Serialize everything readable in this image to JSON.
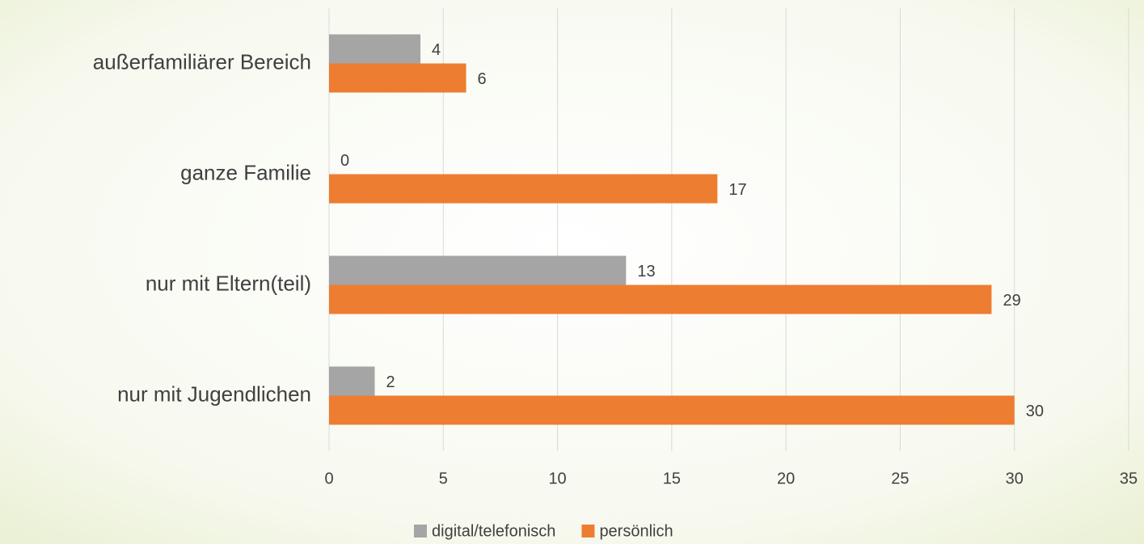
{
  "chart_data": {
    "type": "hbar",
    "categories": [
      "außerfamiliärer Bereich",
      "ganze Familie",
      "nur mit Eltern(teil)",
      "nur mit Jugendlichen"
    ],
    "series": [
      {
        "name": "digital/telefonisch",
        "color": "#a5a5a5",
        "values": [
          4,
          0,
          13,
          2
        ]
      },
      {
        "name": "persönlich",
        "color": "#ed7d31",
        "values": [
          6,
          17,
          29,
          30
        ]
      }
    ],
    "xlim": [
      0,
      35
    ],
    "xticks": [
      0,
      5,
      10,
      15,
      20,
      25,
      30,
      35
    ],
    "grid": true,
    "legend": "bottom"
  }
}
